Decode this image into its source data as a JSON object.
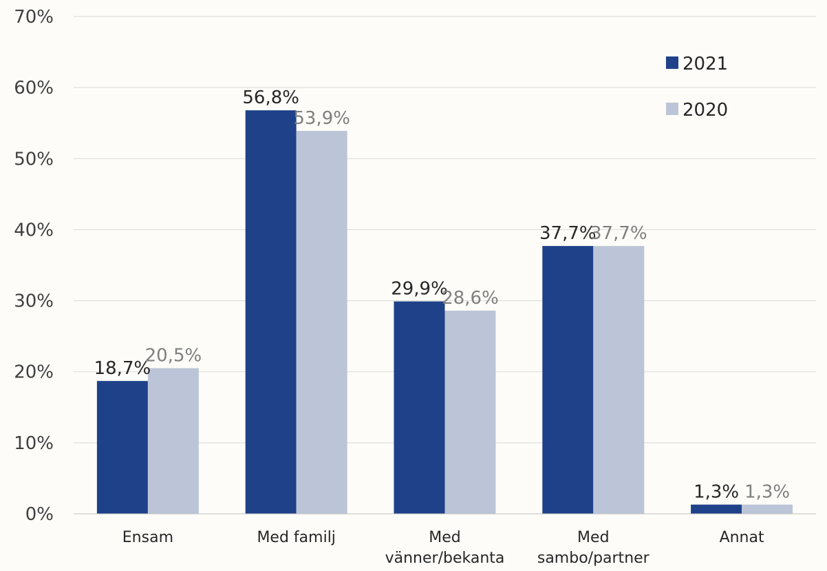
{
  "chart_data": {
    "type": "bar",
    "categories": [
      [
        "Ensam"
      ],
      [
        "Med familj"
      ],
      [
        "Med",
        "vänner/bekanta"
      ],
      [
        "Med",
        "sambo/partner"
      ],
      [
        "Annat"
      ]
    ],
    "series": [
      {
        "name": "2021",
        "color": "#1f4189",
        "label_color": "#262626",
        "values": [
          18.7,
          56.8,
          29.9,
          37.7,
          1.3
        ],
        "labels": [
          "18,7%",
          "56,8%",
          "29,9%",
          "37,7%",
          "1,3%"
        ]
      },
      {
        "name": "2020",
        "color": "#bcc5d7",
        "label_color": "#7f7f7f",
        "values": [
          20.5,
          53.9,
          28.6,
          37.7,
          1.3
        ],
        "labels": [
          "20,5%",
          "53,9%",
          "28,6%",
          "37,7%",
          "1,3%"
        ]
      }
    ],
    "y_ticks": [
      0,
      10,
      20,
      30,
      40,
      50,
      60,
      70
    ],
    "y_tick_labels": [
      "0%",
      "10%",
      "20%",
      "30%",
      "40%",
      "50%",
      "60%",
      "70%"
    ],
    "ylim": [
      0,
      70
    ],
    "grid": true,
    "legend_position": "top-right"
  }
}
